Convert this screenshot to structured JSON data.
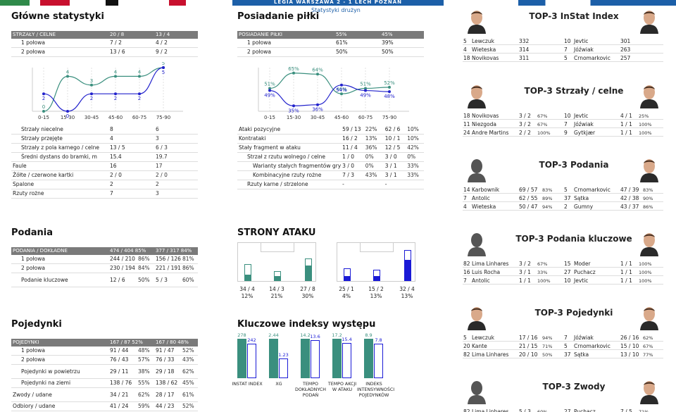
{
  "header": {
    "match": "LEGIA WARSZAWA 2 - 1 LECH POZNAŃ",
    "subtitle": "Statystyki drużyn"
  },
  "main_stats": {
    "title": "Główne statystyki",
    "header": [
      "STRZAŁY / CELNE",
      "20 / 8",
      "13 / 4"
    ],
    "halves": [
      [
        "1 połowa",
        "7 / 2",
        "4 / 2"
      ],
      [
        "2 połowa",
        "13 / 6",
        "9 / 2"
      ]
    ],
    "chart": {
      "type": "line",
      "categories": [
        "0-15",
        "15-30",
        "30-45",
        "45-60",
        "60-75",
        "75-90"
      ],
      "series": [
        {
          "color": "#3a8f7e",
          "values": [
            0,
            4,
            3,
            4,
            4,
            5
          ]
        },
        {
          "color": "#2222cc",
          "values": [
            2,
            0,
            2,
            2,
            2,
            5
          ]
        }
      ]
    },
    "rows": [
      [
        "Strzały niecelne",
        "8",
        "6"
      ],
      [
        "Strzały przejęte",
        "4",
        "3"
      ],
      [
        "Strzały z pola karnego / celne",
        "13 / 5",
        "6 / 3"
      ],
      [
        "Średni dystans do bramki, m",
        "15.4",
        "19.7"
      ],
      [
        "Faule",
        "16",
        "17"
      ],
      [
        "Żółte / czerwone kartki",
        "2 / 0",
        "2 / 0"
      ],
      [
        "Spalone",
        "2",
        "2"
      ],
      [
        "Rzuty rożne",
        "7",
        "3"
      ]
    ]
  },
  "possession": {
    "title": "Posiadanie piłki",
    "header": [
      "POSIADANIE PIŁKI",
      "55%",
      "45%"
    ],
    "halves": [
      [
        "1 połowa",
        "61%",
        "39%"
      ],
      [
        "2 połowa",
        "50%",
        "50%"
      ]
    ],
    "chart": {
      "type": "line",
      "categories": [
        "0-15",
        "15-30",
        "30-45",
        "45-60",
        "60-75",
        "75-90"
      ],
      "series": [
        {
          "color": "#3a8f7e",
          "values": [
            51,
            65,
            64,
            46,
            51,
            52
          ]
        },
        {
          "color": "#2222cc",
          "values": [
            49,
            35,
            36,
            54,
            49,
            48
          ]
        }
      ]
    },
    "rows": [
      [
        "Ataki pozycyjne",
        "59 / 13",
        "22%",
        "62 / 6",
        "10%"
      ],
      [
        "Kontrataki",
        "16 / 2",
        "13%",
        "10 / 1",
        "10%"
      ],
      [
        "Stały fragment w ataku",
        "11 / 4",
        "36%",
        "12 / 5",
        "42%"
      ],
      [
        "Strzał z rzutu wolnego / celne",
        "1 / 0",
        "0%",
        "3 / 0",
        "0%"
      ],
      [
        "Warianty stałych fragmentów gry",
        "3 / 0",
        "0%",
        "3 / 1",
        "33%"
      ],
      [
        "Kombinacyjne rzuty rożne",
        "7 / 3",
        "43%",
        "3 / 1",
        "33%"
      ],
      [
        "Rzuty karne /  strzelone",
        "-",
        "",
        "-",
        ""
      ]
    ]
  },
  "passes": {
    "title": "Podania",
    "header": [
      "PODANIA / DOKŁADNE",
      "474 / 404 85%",
      "377 / 317 84%"
    ],
    "rows": [
      [
        "1 połowa",
        "244 / 210",
        "86%",
        "156 / 126",
        "81%"
      ],
      [
        "2 połowa",
        "230 / 194",
        "84%",
        "221 / 191",
        "86%"
      ],
      [
        "Podanie kluczowe",
        "12 / 6",
        "50%",
        "5 / 3",
        "60%"
      ]
    ]
  },
  "attack": {
    "title": "STRONY ATAKU",
    "team1": [
      {
        "v": "34 / 4",
        "p": "12%",
        "h": 0.45
      },
      {
        "v": "14 / 3",
        "p": "21%",
        "h": 0.2
      },
      {
        "v": "27 / 8",
        "p": "30%",
        "h": 0.65
      }
    ],
    "team2": [
      {
        "v": "25 / 1",
        "p": "4%",
        "h": 0.3
      },
      {
        "v": "15 / 2",
        "p": "13%",
        "h": 0.25
      },
      {
        "v": "32 / 4",
        "p": "13%",
        "h": 0.95
      }
    ]
  },
  "duels": {
    "title": "Pojedynki",
    "header": [
      "POJEDYNKI",
      "167 / 87 52%",
      "167 / 80 48%"
    ],
    "rows": [
      [
        "1 połowa",
        "91 / 44",
        "48%",
        "91 / 47",
        "52%"
      ],
      [
        "2 połowa",
        "76 / 43",
        "57%",
        "76 / 33",
        "43%"
      ],
      [
        "Pojedynki w powietrzu",
        "29 / 11",
        "38%",
        "29 / 18",
        "62%"
      ],
      [
        "Pojedynki na ziemi",
        "138 / 76",
        "55%",
        "138 / 62",
        "45%"
      ],
      [
        "Zwody / udane",
        "34 / 21",
        "62%",
        "28 / 17",
        "61%"
      ],
      [
        "Odbiory / udane",
        "41 / 24",
        "59%",
        "44 / 23",
        "52%"
      ]
    ]
  },
  "indexes": {
    "title": "Kluczowe indeksy występu",
    "items": [
      {
        "label": "INSTAT INDEX",
        "a": "278",
        "b": "242",
        "ha": 1,
        "hb": 0.87
      },
      {
        "label": "XG",
        "a": "2.44",
        "b": "1.23",
        "ha": 1,
        "hb": 0.5
      },
      {
        "label": "TEMPO DOKŁADNYCH PODAŃ",
        "a": "14.2",
        "b": "13.6",
        "ha": 1,
        "hb": 0.96
      },
      {
        "label": "TEMPO AKCJI W ATAKU",
        "a": "17.2",
        "b": "15.4",
        "ha": 1,
        "hb": 0.9
      },
      {
        "label": "INDEKS INTENSYWNOŚCI POJEDYNKÓW",
        "a": "8.9",
        "b": "7.8",
        "ha": 1,
        "hb": 0.88
      }
    ]
  },
  "tops": [
    {
      "title": "TOP-3 InStat Index",
      "left": [
        [
          "5",
          "Lewczuk",
          "332"
        ],
        [
          "4",
          "Wieteska",
          "314"
        ],
        [
          "18",
          "Novikovas",
          "311"
        ]
      ],
      "right": [
        [
          "10",
          "Jevtic",
          "301"
        ],
        [
          "7",
          "Jóźwiak",
          "263"
        ],
        [
          "5",
          "Crnomarkovic",
          "257"
        ]
      ]
    },
    {
      "title": "TOP-3 Strzały / celne",
      "left": [
        [
          "18",
          "Novikovas",
          "3 / 2",
          "67%"
        ],
        [
          "11",
          "Niezgoda",
          "3 / 2",
          "67%"
        ],
        [
          "24",
          "Andre Martins",
          "2 / 2",
          "100%"
        ]
      ],
      "right": [
        [
          "10",
          "Jevtic",
          "4 / 1",
          "25%"
        ],
        [
          "7",
          "Jóźwiak",
          "1 / 1",
          "100%"
        ],
        [
          "9",
          "Gytkjær",
          "1 / 1",
          "100%"
        ]
      ]
    },
    {
      "title": "TOP-3 Podania",
      "left": [
        [
          "14",
          "Karbownik",
          "69 / 57",
          "83%"
        ],
        [
          "7",
          "Antolic",
          "62 / 55",
          "89%"
        ],
        [
          "4",
          "Wieteska",
          "50 / 47",
          "94%"
        ]
      ],
      "right": [
        [
          "5",
          "Crnomarkovic",
          "47 / 39",
          "83%"
        ],
        [
          "37",
          "Sątka",
          "42 / 38",
          "90%"
        ],
        [
          "2",
          "Gumny",
          "43 / 37",
          "86%"
        ]
      ]
    },
    {
      "title": "TOP-3 Podania kluczowe",
      "left": [
        [
          "82",
          "Lima Linhares",
          "3 / 2",
          "67%"
        ],
        [
          "16",
          "Luis Rocha",
          "3 / 1",
          "33%"
        ],
        [
          "7",
          "Antolic",
          "1 / 1",
          "100%"
        ]
      ],
      "right": [
        [
          "15",
          "Moder",
          "1 / 1",
          "100%"
        ],
        [
          "27",
          "Puchacz",
          "1 / 1",
          "100%"
        ],
        [
          "10",
          "Jevtic",
          "1 / 1",
          "100%"
        ]
      ]
    },
    {
      "title": "TOP-3 Pojedynki",
      "left": [
        [
          "5",
          "Lewczuk",
          "17 / 16",
          "94%"
        ],
        [
          "20",
          "Kante",
          "21 / 15",
          "71%"
        ],
        [
          "82",
          "Lima Linhares",
          "20 / 10",
          "50%"
        ]
      ],
      "right": [
        [
          "7",
          "Jóźwiak",
          "26 / 16",
          "62%"
        ],
        [
          "5",
          "Crnomarkovic",
          "15 / 10",
          "67%"
        ],
        [
          "37",
          "Sątka",
          "13 / 10",
          "77%"
        ]
      ]
    },
    {
      "title": "TOP-3 Zwody",
      "left": [
        [
          "82",
          "Lima Linhares",
          "5 / 3",
          "60%"
        ]
      ],
      "right": [
        [
          "27",
          "Puchacz",
          "7 / 5",
          "71%"
        ]
      ]
    }
  ]
}
